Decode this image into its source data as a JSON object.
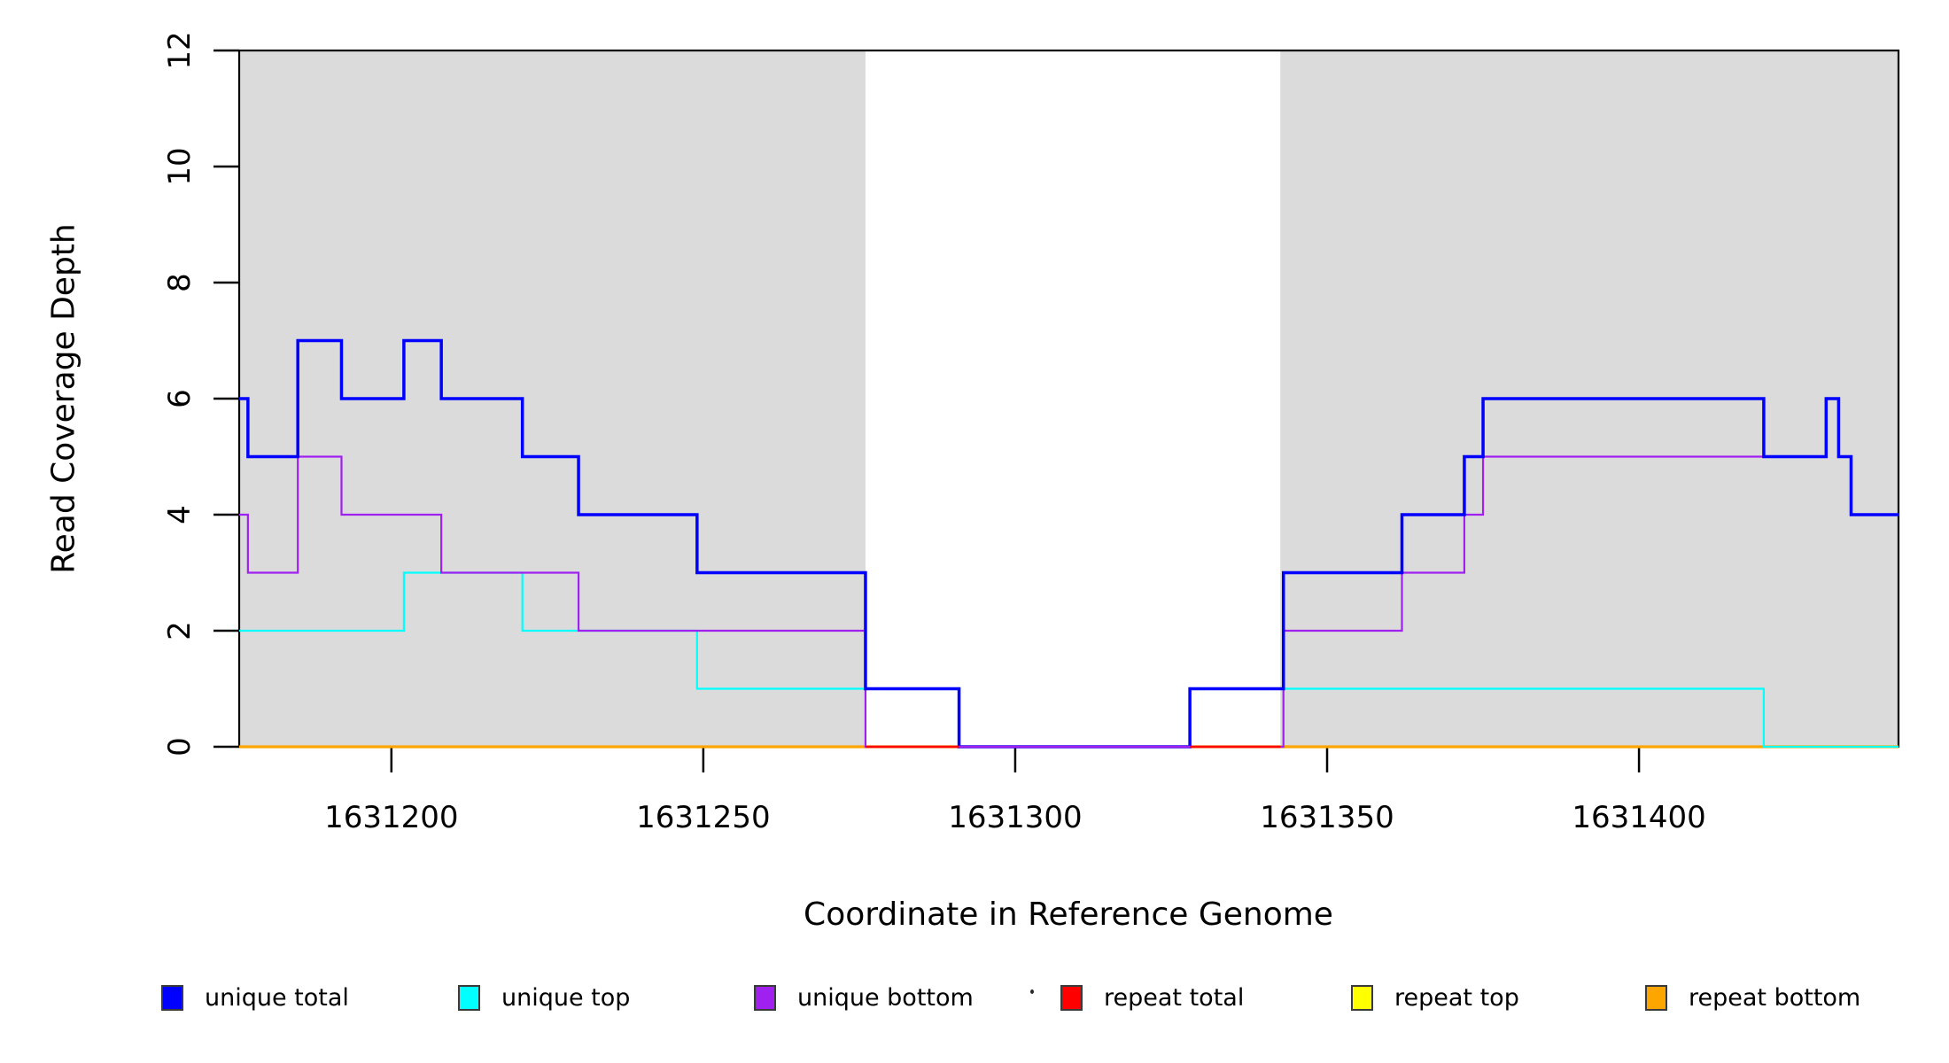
{
  "figure": {
    "title": ""
  },
  "legend": {
    "items": [
      {
        "label": "unique total",
        "color": "#0000FF"
      },
      {
        "label": "unique top",
        "color": "#00FFFF"
      },
      {
        "label": "unique bottom",
        "color": "#A020F0"
      },
      {
        "label": "repeat total",
        "color": "#FF0000"
      },
      {
        "label": "repeat top",
        "color": "#FFFF00"
      },
      {
        "label": "repeat bottom",
        "color": "#FFA500"
      }
    ]
  },
  "chart_data": {
    "type": "line",
    "step": true,
    "title": "",
    "xlabel": "Coordinate in Reference Genome",
    "ylabel": "Read Coverage Depth",
    "xlim": [
      1631175.6,
      1631441.6
    ],
    "ylim": [
      0,
      12
    ],
    "x_ticks": [
      1631200,
      1631250,
      1631300,
      1631350,
      1631400
    ],
    "y_ticks": [
      0,
      2,
      4,
      6,
      8,
      10,
      12
    ],
    "grid": false,
    "legend_position": "bottom",
    "shade_color": "#DBDBDB",
    "shaded_regions": [
      {
        "from": 1631175.6,
        "to": 1631276.0
      },
      {
        "from": 1631342.5,
        "to": 1631441.6
      }
    ],
    "series": [
      {
        "name": "unique total",
        "color": "#0000FF",
        "lwd": 3.5,
        "steps": [
          [
            1631175.6,
            6
          ],
          [
            1631177,
            5
          ],
          [
            1631185,
            7
          ],
          [
            1631192,
            6
          ],
          [
            1631202,
            7
          ],
          [
            1631208,
            6
          ],
          [
            1631221,
            5
          ],
          [
            1631230,
            4
          ],
          [
            1631249,
            3
          ],
          [
            1631276,
            1
          ],
          [
            1631291,
            0
          ],
          [
            1631328,
            1
          ],
          [
            1631343,
            3
          ],
          [
            1631362,
            4
          ],
          [
            1631372,
            5
          ],
          [
            1631375,
            6
          ],
          [
            1631420,
            5
          ],
          [
            1631430,
            6
          ],
          [
            1631432,
            5
          ],
          [
            1631434,
            4
          ]
        ]
      },
      {
        "name": "unique top",
        "color": "#00FFFF",
        "lwd": 2.2,
        "steps": [
          [
            1631175.6,
            2
          ],
          [
            1631202,
            3
          ],
          [
            1631221,
            2
          ],
          [
            1631249,
            1
          ],
          [
            1631291,
            0
          ],
          [
            1631328,
            1
          ],
          [
            1631420,
            0
          ]
        ]
      },
      {
        "name": "unique bottom",
        "color": "#A020F0",
        "lwd": 2.2,
        "steps": [
          [
            1631175.6,
            4
          ],
          [
            1631177,
            3
          ],
          [
            1631185,
            5
          ],
          [
            1631192,
            4
          ],
          [
            1631208,
            3
          ],
          [
            1631230,
            2
          ],
          [
            1631276,
            0
          ],
          [
            1631343,
            2
          ],
          [
            1631362,
            3
          ],
          [
            1631372,
            4
          ],
          [
            1631375,
            5
          ],
          [
            1631430,
            6
          ],
          [
            1631432,
            5
          ],
          [
            1631434,
            4
          ]
        ]
      },
      {
        "name": "repeat total",
        "color": "#FF0000",
        "lwd": 2.5,
        "steps": [
          [
            1631175.6,
            0
          ]
        ]
      },
      {
        "name": "repeat top",
        "color": "#FFFF00",
        "lwd": 2.2,
        "steps": [
          [
            1631175.6,
            0
          ]
        ]
      },
      {
        "name": "repeat bottom",
        "color": "#FFA500",
        "lwd": 3.2,
        "steps": [
          [
            1631175.6,
            0
          ]
        ]
      }
    ],
    "draw_order": [
      4,
      3,
      5,
      1,
      2,
      0
    ],
    "baseline_overlaps": [
      {
        "color": "#FF0000",
        "from": 1631276.0,
        "to": 1631291.0,
        "y": 0
      },
      {
        "color": "#FF0000",
        "from": 1631328.0,
        "to": 1631342.5,
        "y": 0
      },
      {
        "color": "#A020F0",
        "from": 1631291.0,
        "to": 1631328.0,
        "y": 0
      }
    ]
  }
}
